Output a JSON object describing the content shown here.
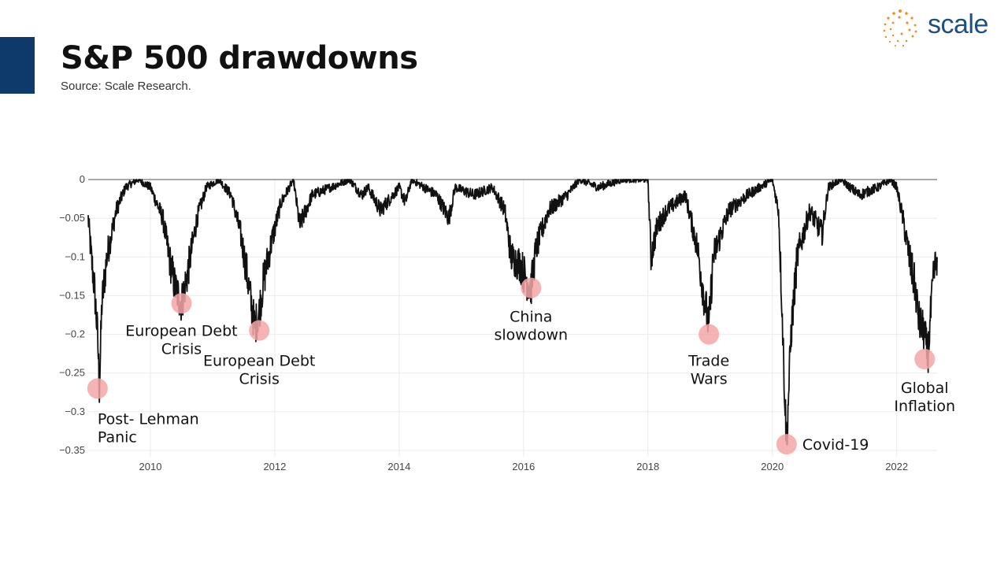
{
  "header": {
    "title": "S&P 500 drawdowns",
    "subtitle": "Source: Scale Research."
  },
  "logo": {
    "text": "scale",
    "icon": "dotted-sphere-icon"
  },
  "colors": {
    "accent": "#0d3a6b",
    "line": "#111111",
    "marker": "#f4a6a6",
    "logo": "#1d4f82",
    "logo_dots": "#f08a24"
  },
  "chart_data": {
    "type": "line",
    "title": "",
    "xlabel": "",
    "ylabel": "",
    "xlim": [
      2009.0,
      2022.65
    ],
    "ylim": [
      -0.36,
      0.0
    ],
    "grid": true,
    "x_ticks": [
      "2010",
      "2012",
      "2014",
      "2016",
      "2018",
      "2020",
      "2022"
    ],
    "y_ticks": [
      "0",
      "−0.05",
      "−0.1",
      "−0.15",
      "−0.2",
      "−0.25",
      "−0.3",
      "−0.35"
    ],
    "y_tick_values": [
      0,
      -0.05,
      -0.1,
      -0.15,
      -0.2,
      -0.25,
      -0.3,
      -0.35
    ],
    "series": [
      {
        "x": [
          2009.0,
          2009.05,
          2009.1,
          2009.15,
          2009.18,
          2009.22,
          2009.3,
          2009.45,
          2009.6,
          2009.8,
          2010.0,
          2010.2,
          2010.3,
          2010.4,
          2010.5,
          2010.6,
          2010.75,
          2010.9,
          2011.1,
          2011.3,
          2011.45,
          2011.55,
          2011.62,
          2011.68,
          2011.75,
          2011.82,
          2011.95,
          2012.1,
          2012.3,
          2012.4,
          2012.6,
          2012.9,
          2013.2,
          2013.4,
          2013.5,
          2013.7,
          2014.0,
          2014.1,
          2014.2,
          2014.6,
          2014.8,
          2014.9,
          2015.2,
          2015.5,
          2015.7,
          2015.8,
          2015.95,
          2016.05,
          2016.12,
          2016.2,
          2016.4,
          2016.55,
          2016.7,
          2016.9,
          2017.2,
          2017.6,
          2018.0,
          2018.05,
          2018.15,
          2018.3,
          2018.6,
          2018.8,
          2018.9,
          2018.98,
          2019.05,
          2019.3,
          2019.6,
          2019.8,
          2020.0,
          2020.1,
          2020.15,
          2020.2,
          2020.23,
          2020.3,
          2020.4,
          2020.6,
          2020.8,
          2020.9,
          2021.1,
          2021.4,
          2021.7,
          2021.9,
          2022.0,
          2022.1,
          2022.2,
          2022.3,
          2022.35,
          2022.45,
          2022.5,
          2022.55,
          2022.6,
          2022.65
        ],
        "values": [
          -0.05,
          -0.1,
          -0.14,
          -0.2,
          -0.27,
          -0.16,
          -0.1,
          -0.04,
          -0.01,
          0.0,
          -0.01,
          -0.05,
          -0.1,
          -0.14,
          -0.16,
          -0.12,
          -0.05,
          -0.01,
          0.0,
          -0.02,
          -0.07,
          -0.12,
          -0.16,
          -0.19,
          -0.17,
          -0.13,
          -0.08,
          -0.03,
          0.0,
          -0.06,
          -0.02,
          -0.01,
          0.0,
          -0.02,
          -0.01,
          -0.04,
          -0.01,
          -0.03,
          0.0,
          -0.02,
          -0.05,
          -0.01,
          -0.02,
          -0.01,
          -0.04,
          -0.1,
          -0.11,
          -0.13,
          -0.14,
          -0.09,
          -0.04,
          -0.03,
          -0.02,
          0.0,
          -0.01,
          0.0,
          0.0,
          -0.1,
          -0.06,
          -0.04,
          -0.02,
          -0.09,
          -0.15,
          -0.19,
          -0.1,
          -0.04,
          -0.02,
          -0.01,
          0.0,
          -0.04,
          -0.15,
          -0.28,
          -0.34,
          -0.2,
          -0.1,
          -0.04,
          -0.07,
          -0.01,
          0.0,
          -0.02,
          -0.01,
          0.0,
          -0.01,
          -0.05,
          -0.1,
          -0.14,
          -0.18,
          -0.2,
          -0.23,
          -0.17,
          -0.12,
          -0.1
        ]
      }
    ],
    "annotations": [
      {
        "x": 2009.15,
        "y": -0.27,
        "label": "Post- Lehman Panic"
      },
      {
        "x": 2010.5,
        "y": -0.16,
        "label": "European Debt Crisis"
      },
      {
        "x": 2011.75,
        "y": -0.195,
        "label": "European Debt Crisis"
      },
      {
        "x": 2016.12,
        "y": -0.14,
        "label": "China slowdown"
      },
      {
        "x": 2018.98,
        "y": -0.2,
        "label": "Trade Wars"
      },
      {
        "x": 2020.23,
        "y": -0.342,
        "label": "Covid-19"
      },
      {
        "x": 2022.45,
        "y": -0.232,
        "label": "Global Inflation"
      }
    ]
  }
}
